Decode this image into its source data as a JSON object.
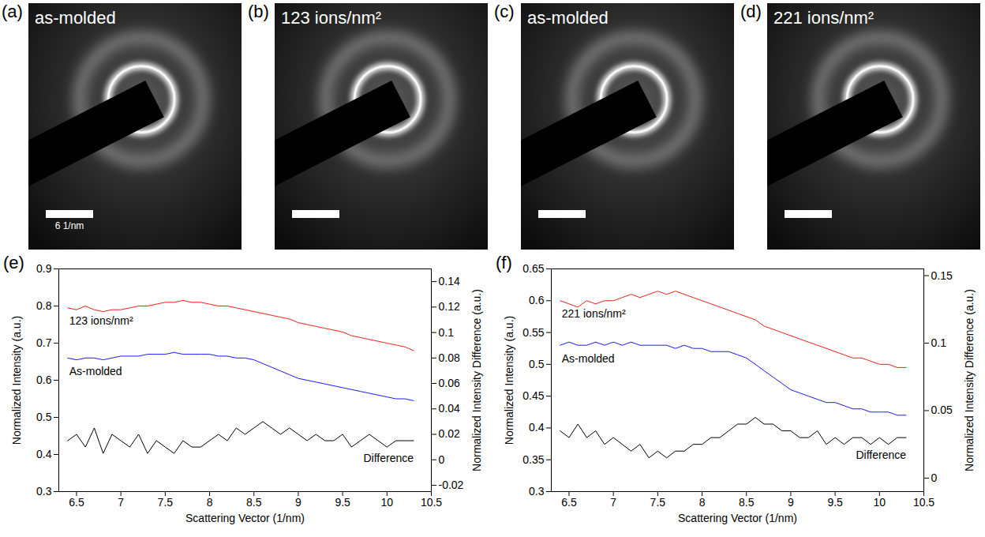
{
  "images": [
    {
      "panel_label": "(a)",
      "label": "as-molded",
      "scale_bar": "6 1/nm"
    },
    {
      "panel_label": "(b)",
      "label": "123 ions/nm²"
    },
    {
      "panel_label": "(c)",
      "label": "as-molded"
    },
    {
      "panel_label": "(d)",
      "label": "221 ions/nm²"
    }
  ],
  "chart_data": [
    {
      "type": "line",
      "panel_label": "(e)",
      "x_label": "Scattering Vector (1/nm)",
      "y_label": "Normalized Intensity (a.u.)",
      "y2_label": "Normalized Intensity Difference (a.u.)",
      "x": [
        6.4,
        6.5,
        6.6,
        6.7,
        6.8,
        6.9,
        7.0,
        7.1,
        7.2,
        7.3,
        7.4,
        7.5,
        7.6,
        7.7,
        7.8,
        7.9,
        8.0,
        8.1,
        8.2,
        8.3,
        8.4,
        8.5,
        8.6,
        8.7,
        8.8,
        8.9,
        9.0,
        9.1,
        9.2,
        9.3,
        9.4,
        9.5,
        9.6,
        9.7,
        9.8,
        9.9,
        10.0,
        10.1,
        10.2,
        10.3
      ],
      "xlim": [
        6.3,
        10.5
      ],
      "xticks": [
        6.5,
        7,
        7.5,
        8,
        8.5,
        9,
        9.5,
        10,
        10.5
      ],
      "ylim": [
        0.3,
        0.9
      ],
      "yticks": [
        0.3,
        0.4,
        0.5,
        0.6,
        0.7,
        0.8,
        0.9
      ],
      "y2lim": [
        -0.025,
        0.15
      ],
      "y2ticks": [
        -0.02,
        0,
        0.02,
        0.04,
        0.06,
        0.08,
        0.1,
        0.12,
        0.14
      ],
      "series": [
        {
          "name": "123 ions/nm²",
          "color": "#f0201a",
          "values": [
            0.795,
            0.79,
            0.8,
            0.79,
            0.785,
            0.79,
            0.79,
            0.795,
            0.8,
            0.8,
            0.805,
            0.81,
            0.81,
            0.815,
            0.81,
            0.81,
            0.805,
            0.8,
            0.8,
            0.795,
            0.79,
            0.785,
            0.78,
            0.775,
            0.77,
            0.765,
            0.755,
            0.75,
            0.745,
            0.74,
            0.735,
            0.73,
            0.72,
            0.715,
            0.71,
            0.705,
            0.7,
            0.695,
            0.69,
            0.68
          ]
        },
        {
          "name": "As-molded",
          "color": "#1a1aff",
          "values": [
            0.66,
            0.655,
            0.66,
            0.66,
            0.655,
            0.66,
            0.665,
            0.665,
            0.665,
            0.67,
            0.67,
            0.67,
            0.675,
            0.67,
            0.67,
            0.67,
            0.67,
            0.665,
            0.665,
            0.66,
            0.66,
            0.655,
            0.645,
            0.635,
            0.625,
            0.615,
            0.605,
            0.6,
            0.595,
            0.59,
            0.585,
            0.58,
            0.575,
            0.57,
            0.565,
            0.56,
            0.555,
            0.55,
            0.55,
            0.545
          ]
        },
        {
          "name": "Difference",
          "color": "#000000",
          "axis": "y2",
          "values": [
            0.015,
            0.02,
            0.01,
            0.025,
            0.005,
            0.02,
            0.015,
            0.01,
            0.02,
            0.005,
            0.015,
            0.01,
            0.005,
            0.015,
            0.01,
            0.01,
            0.015,
            0.02,
            0.015,
            0.025,
            0.02,
            0.025,
            0.03,
            0.025,
            0.02,
            0.025,
            0.02,
            0.015,
            0.02,
            0.015,
            0.015,
            0.02,
            0.01,
            0.015,
            0.02,
            0.015,
            0.01,
            0.015,
            0.015,
            0.015
          ]
        }
      ]
    },
    {
      "type": "line",
      "panel_label": "(f)",
      "x_label": "Scattering Vector (1/nm)",
      "y_label": "Normalized Intensity (a.u.)",
      "y2_label": "Normalized Intensity Difference (a.u.)",
      "x": [
        6.4,
        6.5,
        6.6,
        6.7,
        6.8,
        6.9,
        7.0,
        7.1,
        7.2,
        7.3,
        7.4,
        7.5,
        7.6,
        7.7,
        7.8,
        7.9,
        8.0,
        8.1,
        8.2,
        8.3,
        8.4,
        8.5,
        8.6,
        8.7,
        8.8,
        8.9,
        9.0,
        9.1,
        9.2,
        9.3,
        9.4,
        9.5,
        9.6,
        9.7,
        9.8,
        9.9,
        10.0,
        10.1,
        10.2,
        10.3
      ],
      "xlim": [
        6.3,
        10.5
      ],
      "xticks": [
        6.5,
        7,
        7.5,
        8,
        8.5,
        9,
        9.5,
        10,
        10.5
      ],
      "ylim": [
        0.3,
        0.65
      ],
      "yticks": [
        0.3,
        0.35,
        0.4,
        0.45,
        0.5,
        0.55,
        0.6,
        0.65
      ],
      "y2lim": [
        -0.01,
        0.155
      ],
      "y2ticks": [
        0,
        0.05,
        0.1,
        0.15
      ],
      "series": [
        {
          "name": "221 ions/nm²",
          "color": "#f0201a",
          "values": [
            0.6,
            0.595,
            0.59,
            0.6,
            0.595,
            0.6,
            0.6,
            0.605,
            0.61,
            0.605,
            0.61,
            0.615,
            0.61,
            0.615,
            0.61,
            0.605,
            0.6,
            0.595,
            0.59,
            0.585,
            0.58,
            0.575,
            0.57,
            0.56,
            0.555,
            0.55,
            0.545,
            0.54,
            0.535,
            0.53,
            0.525,
            0.52,
            0.515,
            0.51,
            0.51,
            0.505,
            0.5,
            0.5,
            0.495,
            0.495
          ]
        },
        {
          "name": "As-molded",
          "color": "#1a1aff",
          "values": [
            0.53,
            0.535,
            0.53,
            0.53,
            0.535,
            0.53,
            0.535,
            0.53,
            0.535,
            0.53,
            0.53,
            0.53,
            0.53,
            0.525,
            0.53,
            0.525,
            0.525,
            0.52,
            0.52,
            0.52,
            0.515,
            0.51,
            0.5,
            0.49,
            0.48,
            0.47,
            0.46,
            0.455,
            0.45,
            0.445,
            0.44,
            0.44,
            0.435,
            0.43,
            0.43,
            0.425,
            0.425,
            0.425,
            0.42,
            0.42
          ]
        },
        {
          "name": "Difference",
          "color": "#000000",
          "axis": "y2",
          "values": [
            0.035,
            0.03,
            0.04,
            0.03,
            0.035,
            0.025,
            0.03,
            0.025,
            0.02,
            0.025,
            0.015,
            0.02,
            0.015,
            0.02,
            0.02,
            0.025,
            0.025,
            0.03,
            0.03,
            0.035,
            0.04,
            0.04,
            0.045,
            0.04,
            0.04,
            0.035,
            0.035,
            0.03,
            0.03,
            0.035,
            0.025,
            0.03,
            0.025,
            0.03,
            0.03,
            0.025,
            0.03,
            0.025,
            0.03,
            0.03
          ]
        }
      ]
    }
  ]
}
